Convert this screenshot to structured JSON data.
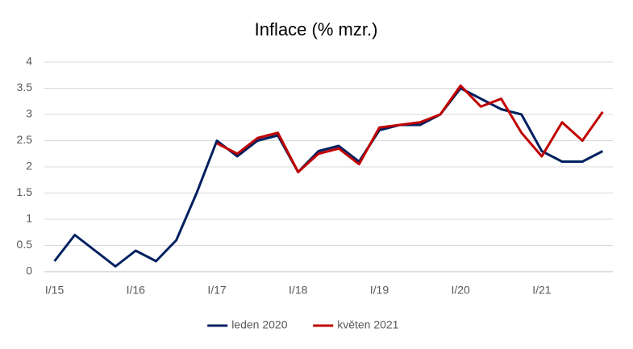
{
  "chart_data": {
    "type": "line",
    "title": "Inflace (% mzr.)",
    "categories": [
      "I/15",
      null,
      null,
      null,
      "I/16",
      null,
      null,
      null,
      "I/17",
      null,
      null,
      null,
      "I/18",
      null,
      null,
      null,
      "I/19",
      null,
      null,
      null,
      "I/20",
      null,
      null,
      null,
      "I/21",
      null,
      null,
      null
    ],
    "series": [
      {
        "name": "leden 2020",
        "color": "#002060",
        "values": [
          0.2,
          0.7,
          0.4,
          0.1,
          0.4,
          0.2,
          0.6,
          1.5,
          2.5,
          2.2,
          2.5,
          2.6,
          1.9,
          2.3,
          2.4,
          2.1,
          2.7,
          2.8,
          2.8,
          3.0,
          3.5,
          3.3,
          3.1,
          3.0,
          2.3,
          2.1,
          2.1,
          2.3
        ]
      },
      {
        "name": "květen 2021",
        "color": "#c00000",
        "values": [
          null,
          null,
          null,
          null,
          null,
          null,
          null,
          null,
          2.45,
          2.25,
          2.55,
          2.65,
          1.9,
          2.25,
          2.35,
          2.05,
          2.75,
          2.8,
          2.85,
          3.0,
          3.55,
          3.15,
          3.3,
          2.65,
          2.2,
          2.85,
          2.5,
          3.05
        ]
      }
    ],
    "ylim": [
      0,
      4
    ],
    "yticks": [
      0,
      0.5,
      1,
      1.5,
      2,
      2.5,
      3,
      3.5,
      4
    ],
    "grid": true,
    "legend": "bottom"
  }
}
